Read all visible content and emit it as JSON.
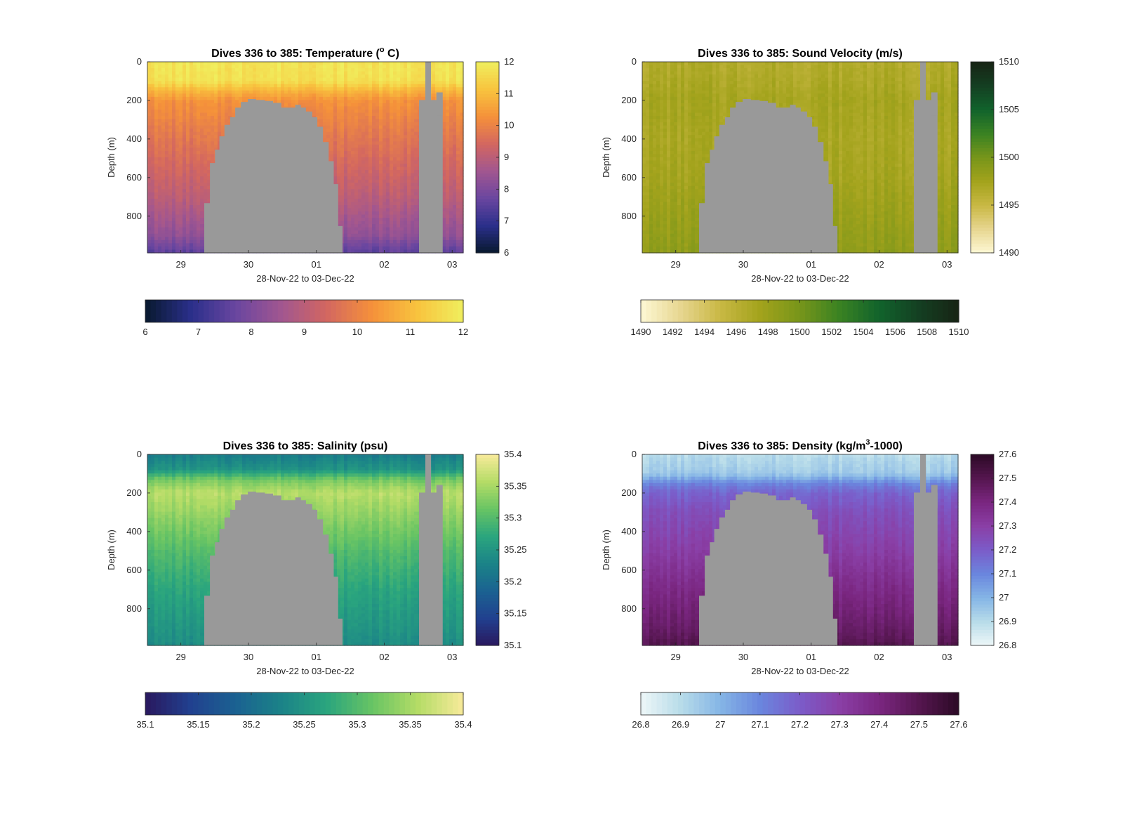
{
  "chart_data": [
    {
      "type": "heatmap",
      "title_parts": [
        "Dives 336 to 385: Temperature (",
        "o",
        " C)"
      ],
      "xlabel": "28-Nov-22 to 03-Dec-22",
      "ylabel": "Depth (m)",
      "xticks": [
        "29",
        "30",
        "01",
        "02",
        "03"
      ],
      "yticks": [
        "0",
        "200",
        "400",
        "600",
        "800"
      ],
      "ylim": [
        0,
        990
      ],
      "clim": [
        6,
        12
      ],
      "side_ticks": [
        "6",
        "7",
        "8",
        "9",
        "10",
        "11",
        "12"
      ],
      "bottom_ticks": [
        "6",
        "7",
        "8",
        "9",
        "10",
        "11",
        "12"
      ],
      "colormap": [
        "#08192e",
        "#2a2f8a",
        "#6a46a0",
        "#a15690",
        "#d36760",
        "#f5913a",
        "#f8c43e",
        "#f0ef5e"
      ],
      "profile": {
        "depths": [
          0,
          100,
          150,
          200,
          300,
          500,
          700,
          900,
          990
        ],
        "values": [
          11.8,
          11.7,
          10.9,
          10.3,
          10.0,
          9.5,
          9.0,
          8.3,
          7.5
        ]
      }
    },
    {
      "type": "heatmap",
      "title_parts": [
        "Dives 336 to 385: Sound Velocity (m/s)",
        "",
        ""
      ],
      "xlabel": "28-Nov-22 to 03-Dec-22",
      "ylabel": "Depth (m)",
      "xticks": [
        "29",
        "30",
        "01",
        "02",
        "03"
      ],
      "yticks": [
        "0",
        "200",
        "400",
        "600",
        "800"
      ],
      "ylim": [
        0,
        990
      ],
      "clim": [
        1490,
        1510
      ],
      "side_ticks": [
        "1490",
        "1495",
        "1500",
        "1505",
        "1510"
      ],
      "bottom_ticks": [
        "1490",
        "1492",
        "1494",
        "1496",
        "1498",
        "1500",
        "1502",
        "1504",
        "1506",
        "1508",
        "1510"
      ],
      "colormap": [
        "#fdf8d5",
        "#e7d690",
        "#c9b844",
        "#a3a31c",
        "#77951a",
        "#3a8222",
        "#11632c",
        "#143f22",
        "#172414"
      ],
      "profile": {
        "depths": [
          0,
          100,
          200,
          400,
          600,
          800,
          990
        ],
        "values": [
          1496.5,
          1496.8,
          1497.3,
          1497.0,
          1497.3,
          1498.0,
          1498.6
        ]
      }
    },
    {
      "type": "heatmap",
      "title_parts": [
        "Dives 336 to 385: Salinity (psu)",
        "",
        ""
      ],
      "xlabel": "28-Nov-22 to 03-Dec-22",
      "ylabel": "Depth (m)",
      "xticks": [
        "29",
        "30",
        "01",
        "02",
        "03"
      ],
      "yticks": [
        "0",
        "200",
        "400",
        "600",
        "800"
      ],
      "ylim": [
        0,
        990
      ],
      "clim": [
        35.1,
        35.4
      ],
      "side_ticks": [
        "35.1",
        "35.15",
        "35.2",
        "35.25",
        "35.3",
        "35.35",
        "35.4"
      ],
      "bottom_ticks": [
        "35.1",
        "35.15",
        "35.2",
        "35.25",
        "35.3",
        "35.35",
        "35.4"
      ],
      "colormap": [
        "#29185e",
        "#21408f",
        "#1b6291",
        "#1b8388",
        "#2aa57e",
        "#68c464",
        "#b4dc66",
        "#f8ea9a"
      ],
      "profile": {
        "depths": [
          0,
          80,
          130,
          200,
          300,
          500,
          700,
          900,
          990
        ],
        "values": [
          35.22,
          35.25,
          35.32,
          35.36,
          35.34,
          35.3,
          35.27,
          35.25,
          35.24
        ]
      }
    },
    {
      "type": "heatmap",
      "title_parts": [
        "Dives 336 to 385: Density (kg/m",
        "3",
        "-1000)"
      ],
      "xlabel": "28-Nov-22 to 03-Dec-22",
      "ylabel": "Depth (m)",
      "xticks": [
        "29",
        "30",
        "01",
        "02",
        "03"
      ],
      "yticks": [
        "0",
        "200",
        "400",
        "600",
        "800"
      ],
      "ylim": [
        0,
        990
      ],
      "clim": [
        26.8,
        27.6
      ],
      "side_ticks": [
        "26.8",
        "26.9",
        "27",
        "27.1",
        "27.2",
        "27.3",
        "27.4",
        "27.5",
        "27.6"
      ],
      "bottom_ticks": [
        "26.8",
        "26.9",
        "27",
        "27.1",
        "27.2",
        "27.3",
        "27.4",
        "27.5",
        "27.6"
      ],
      "colormap": [
        "#eef7f8",
        "#b8dce9",
        "#85b5e6",
        "#6a86de",
        "#7b5cc9",
        "#8a3fa6",
        "#7a2680",
        "#55164f",
        "#2c0a26"
      ],
      "profile": {
        "depths": [
          0,
          100,
          150,
          200,
          300,
          500,
          700,
          900,
          990
        ],
        "values": [
          26.9,
          26.95,
          27.1,
          27.18,
          27.24,
          27.3,
          27.38,
          27.45,
          27.5
        ]
      }
    }
  ]
}
